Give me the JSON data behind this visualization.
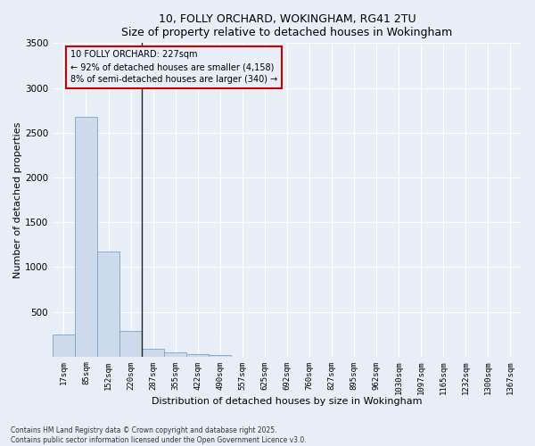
{
  "title_line1": "10, FOLLY ORCHARD, WOKINGHAM, RG41 2TU",
  "title_line2": "Size of property relative to detached houses in Wokingham",
  "xlabel": "Distribution of detached houses by size in Wokingham",
  "ylabel": "Number of detached properties",
  "categories": [
    "17sqm",
    "85sqm",
    "152sqm",
    "220sqm",
    "287sqm",
    "355sqm",
    "422sqm",
    "490sqm",
    "557sqm",
    "625sqm",
    "692sqm",
    "760sqm",
    "827sqm",
    "895sqm",
    "962sqm",
    "1030sqm",
    "1097sqm",
    "1165sqm",
    "1232sqm",
    "1300sqm",
    "1367sqm"
  ],
  "values": [
    250,
    2680,
    1170,
    290,
    85,
    45,
    30,
    15,
    0,
    0,
    0,
    0,
    0,
    0,
    0,
    0,
    0,
    0,
    0,
    0,
    0
  ],
  "bar_color": "#cddaeb",
  "bar_edge_color": "#7ba3cc",
  "background_color": "#e8eef7",
  "grid_color": "#ffffff",
  "property_line_color": "#222222",
  "annotation_text": "10 FOLLY ORCHARD: 227sqm\n← 92% of detached houses are smaller (4,158)\n8% of semi-detached houses are larger (340) →",
  "annotation_box_facecolor": "#e8eef7",
  "annotation_box_edgecolor": "#cc0000",
  "ylim": [
    0,
    3500
  ],
  "yticks": [
    0,
    500,
    1000,
    1500,
    2000,
    2500,
    3000,
    3500
  ],
  "footnote1": "Contains HM Land Registry data © Crown copyright and database right 2025.",
  "footnote2": "Contains public sector information licensed under the Open Government Licence v3.0."
}
